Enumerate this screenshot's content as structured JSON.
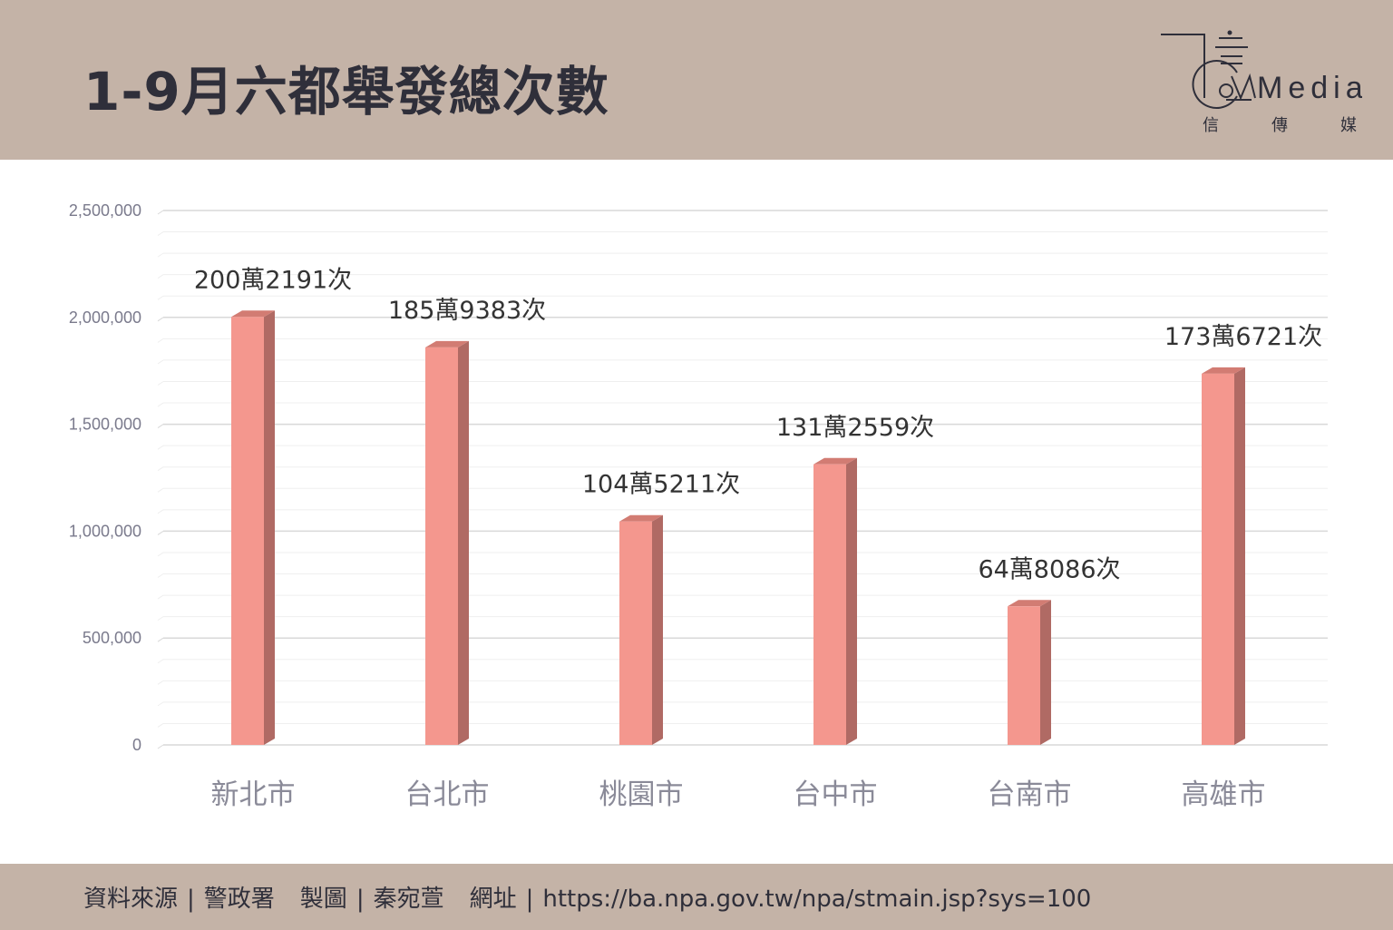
{
  "header": {
    "title": "1-9月六都舉發總次數",
    "logo_text": "Media",
    "logo_sub": [
      "信",
      "傳",
      "媒"
    ]
  },
  "colors": {
    "band": "#c4b3a7",
    "bar_front": "#f4978e",
    "bar_side": "#b06a64",
    "bar_top": "#d27c73",
    "grid_major": "#d9d9d9",
    "grid_minor": "#efefef",
    "tick_text": "#7a7a8c",
    "label_text": "#333333",
    "category_text": "#8a8a98"
  },
  "chart_data": {
    "type": "bar",
    "categories": [
      "新北市",
      "台北市",
      "桃園市",
      "台中市",
      "台南市",
      "高雄市"
    ],
    "values": [
      2002191,
      1859383,
      1045211,
      1312559,
      648086,
      1736721
    ],
    "data_labels": [
      "200萬2191次",
      "185萬9383次",
      "104萬5211次",
      "131萬2559次",
      "64萬8086次",
      "173萬6721次"
    ],
    "yticks": [
      "0",
      "500,000",
      "1,000,000",
      "1,500,000",
      "2,000,000",
      "2,500,000"
    ],
    "ylim": [
      0,
      2500000
    ],
    "title": "1-9月六都舉發總次數",
    "xlabel": "",
    "ylabel": "",
    "grid": true
  },
  "footer": {
    "source_label": "資料來源",
    "source_value": "警政署",
    "chart_label": "製圖",
    "chart_value": "秦宛萱",
    "url_label": "網址",
    "url_value": "https://ba.npa.gov.tw/npa/stmain.jsp?sys=100",
    "separator": "|"
  }
}
